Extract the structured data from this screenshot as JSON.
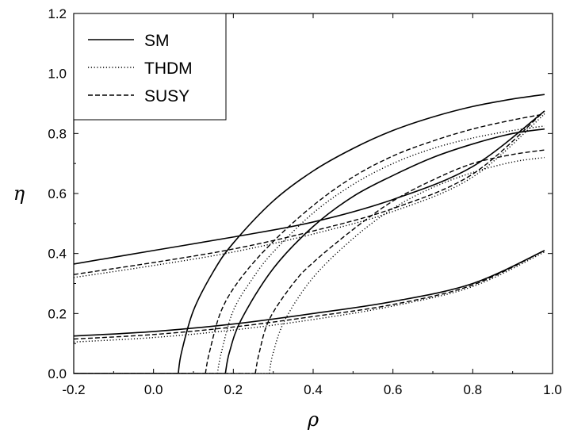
{
  "chart_data": {
    "type": "line",
    "xlabel": "ρ",
    "ylabel": "η",
    "xlim": [
      -0.2,
      1.0
    ],
    "ylim": [
      0.0,
      1.2
    ],
    "x_ticks": [
      "-0.2",
      "0.0",
      "0.2",
      "0.4",
      "0.6",
      "0.8",
      "1.0"
    ],
    "y_ticks": [
      "0.0",
      "0.2",
      "0.4",
      "0.6",
      "0.8",
      "1.0",
      "1.2"
    ],
    "grid": false,
    "legend": {
      "placement": "top-left",
      "entries": [
        {
          "name": "SM",
          "style": "solid"
        },
        {
          "name": "THDM",
          "style": "dotted"
        },
        {
          "name": "SUSY",
          "style": "dashed"
        }
      ]
    },
    "series": [
      {
        "name": "SM",
        "style": "solid",
        "curve": "circle-outer",
        "points": [
          [
            0.062,
            0.0
          ],
          [
            0.07,
            0.07
          ],
          [
            0.1,
            0.21
          ],
          [
            0.15,
            0.34
          ],
          [
            0.2,
            0.435
          ],
          [
            0.3,
            0.575
          ],
          [
            0.4,
            0.675
          ],
          [
            0.5,
            0.75
          ],
          [
            0.6,
            0.81
          ],
          [
            0.7,
            0.855
          ],
          [
            0.8,
            0.89
          ],
          [
            0.9,
            0.915
          ],
          [
            0.98,
            0.93
          ]
        ]
      },
      {
        "name": "SM",
        "style": "solid",
        "curve": "circle-inner",
        "points": [
          [
            0.18,
            0.0
          ],
          [
            0.19,
            0.07
          ],
          [
            0.22,
            0.18
          ],
          [
            0.3,
            0.35
          ],
          [
            0.4,
            0.49
          ],
          [
            0.5,
            0.59
          ],
          [
            0.6,
            0.66
          ],
          [
            0.7,
            0.72
          ],
          [
            0.8,
            0.765
          ],
          [
            0.9,
            0.8
          ],
          [
            0.98,
            0.815
          ]
        ]
      },
      {
        "name": "SM",
        "style": "solid",
        "curve": "band-upper",
        "points": [
          [
            -0.2,
            0.365
          ],
          [
            0.0,
            0.41
          ],
          [
            0.2,
            0.455
          ],
          [
            0.4,
            0.505
          ],
          [
            0.6,
            0.58
          ],
          [
            0.8,
            0.69
          ],
          [
            0.98,
            0.875
          ]
        ]
      },
      {
        "name": "SM",
        "style": "solid",
        "curve": "band-lower",
        "points": [
          [
            -0.2,
            0.125
          ],
          [
            0.0,
            0.14
          ],
          [
            0.2,
            0.165
          ],
          [
            0.4,
            0.2
          ],
          [
            0.6,
            0.24
          ],
          [
            0.8,
            0.3
          ],
          [
            0.98,
            0.41
          ]
        ]
      },
      {
        "name": "THDM",
        "style": "dotted",
        "curve": "circle-outer",
        "points": [
          [
            0.16,
            0.0
          ],
          [
            0.17,
            0.07
          ],
          [
            0.2,
            0.21
          ],
          [
            0.25,
            0.32
          ],
          [
            0.3,
            0.405
          ],
          [
            0.4,
            0.535
          ],
          [
            0.5,
            0.63
          ],
          [
            0.6,
            0.7
          ],
          [
            0.7,
            0.75
          ],
          [
            0.8,
            0.785
          ],
          [
            0.9,
            0.81
          ],
          [
            0.98,
            0.825
          ]
        ]
      },
      {
        "name": "THDM",
        "style": "dotted",
        "curve": "circle-inner",
        "points": [
          [
            0.29,
            0.0
          ],
          [
            0.3,
            0.07
          ],
          [
            0.33,
            0.18
          ],
          [
            0.4,
            0.32
          ],
          [
            0.5,
            0.45
          ],
          [
            0.6,
            0.55
          ],
          [
            0.7,
            0.62
          ],
          [
            0.8,
            0.67
          ],
          [
            0.9,
            0.705
          ],
          [
            0.98,
            0.72
          ]
        ]
      },
      {
        "name": "THDM",
        "style": "dotted",
        "curve": "band-upper",
        "points": [
          [
            -0.2,
            0.32
          ],
          [
            0.0,
            0.36
          ],
          [
            0.2,
            0.405
          ],
          [
            0.4,
            0.465
          ],
          [
            0.6,
            0.54
          ],
          [
            0.8,
            0.655
          ],
          [
            0.98,
            0.865
          ]
        ]
      },
      {
        "name": "THDM",
        "style": "dotted",
        "curve": "band-lower",
        "points": [
          [
            -0.2,
            0.105
          ],
          [
            0.0,
            0.12
          ],
          [
            0.2,
            0.145
          ],
          [
            0.4,
            0.18
          ],
          [
            0.6,
            0.225
          ],
          [
            0.8,
            0.29
          ],
          [
            0.98,
            0.405
          ]
        ]
      },
      {
        "name": "SUSY",
        "style": "dashed",
        "curve": "circle-outer",
        "points": [
          [
            0.13,
            0.0
          ],
          [
            0.14,
            0.07
          ],
          [
            0.17,
            0.21
          ],
          [
            0.22,
            0.32
          ],
          [
            0.3,
            0.44
          ],
          [
            0.4,
            0.56
          ],
          [
            0.5,
            0.655
          ],
          [
            0.6,
            0.725
          ],
          [
            0.7,
            0.775
          ],
          [
            0.8,
            0.815
          ],
          [
            0.9,
            0.845
          ],
          [
            0.98,
            0.865
          ]
        ]
      },
      {
        "name": "SUSY",
        "style": "dashed",
        "curve": "circle-inner",
        "points": [
          [
            0.255,
            0.0
          ],
          [
            0.265,
            0.07
          ],
          [
            0.29,
            0.18
          ],
          [
            0.35,
            0.3
          ],
          [
            0.4,
            0.37
          ],
          [
            0.5,
            0.48
          ],
          [
            0.6,
            0.575
          ],
          [
            0.7,
            0.645
          ],
          [
            0.8,
            0.7
          ],
          [
            0.9,
            0.73
          ],
          [
            0.98,
            0.745
          ]
        ]
      },
      {
        "name": "SUSY",
        "style": "dashed",
        "curve": "band-upper",
        "points": [
          [
            -0.2,
            0.33
          ],
          [
            0.0,
            0.37
          ],
          [
            0.2,
            0.415
          ],
          [
            0.4,
            0.475
          ],
          [
            0.6,
            0.55
          ],
          [
            0.8,
            0.665
          ],
          [
            0.98,
            0.875
          ]
        ]
      },
      {
        "name": "SUSY",
        "style": "dashed",
        "curve": "band-lower",
        "points": [
          [
            -0.2,
            0.115
          ],
          [
            0.0,
            0.13
          ],
          [
            0.2,
            0.155
          ],
          [
            0.4,
            0.19
          ],
          [
            0.6,
            0.23
          ],
          [
            0.8,
            0.295
          ],
          [
            0.98,
            0.41
          ]
        ]
      }
    ]
  }
}
